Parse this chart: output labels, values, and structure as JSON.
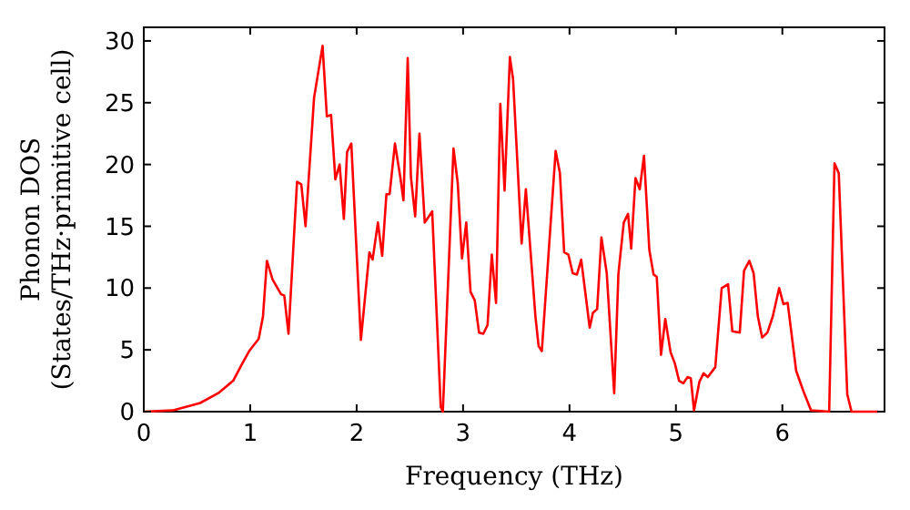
{
  "chart_data": {
    "type": "line",
    "xlabel": "Frequency (THz)",
    "ylabel": "Phonon DOS\n(States/THz·primitive cell)",
    "xlim": [
      0,
      6.96
    ],
    "ylim": [
      0,
      31.1
    ],
    "xticks": [
      0,
      1,
      2,
      3,
      4,
      5,
      6
    ],
    "yticks": [
      0,
      5,
      10,
      15,
      20,
      25,
      30
    ],
    "marker": "none",
    "line_style": "solid",
    "x": [
      0,
      0.27,
      0.53,
      0.7,
      0.84,
      0.92,
      0.99,
      1.08,
      1.12,
      1.157,
      1.21,
      1.29,
      1.32,
      1.36,
      1.44,
      1.48,
      1.52,
      1.6,
      1.68,
      1.72,
      1.76,
      1.8,
      1.84,
      1.88,
      1.91,
      1.95,
      2.04,
      2.12,
      2.15,
      2.2,
      2.24,
      2.28,
      2.31,
      2.36,
      2.41,
      2.44,
      2.48,
      2.51,
      2.55,
      2.59,
      2.64,
      2.71,
      2.79,
      2.81,
      2.91,
      2.95,
      2.99,
      3.03,
      3.07,
      3.11,
      3.15,
      3.19,
      3.23,
      3.27,
      3.31,
      3.35,
      3.39,
      3.44,
      3.47,
      3.55,
      3.59,
      3.68,
      3.71,
      3.74,
      3.87,
      3.91,
      3.95,
      3.99,
      4.03,
      4.07,
      4.11,
      4.19,
      4.22,
      4.26,
      4.3,
      4.35,
      4.42,
      4.46,
      4.51,
      4.55,
      4.58,
      4.62,
      4.66,
      4.7,
      4.75,
      4.79,
      4.82,
      4.86,
      4.9,
      4.95,
      4.99,
      5.03,
      5.07,
      5.11,
      5.14,
      5.17,
      5.22,
      5.26,
      5.3,
      5.37,
      5.43,
      5.49,
      5.53,
      5.6,
      5.64,
      5.69,
      5.73,
      5.77,
      5.81,
      5.86,
      5.91,
      5.97,
      6.01,
      6.05,
      6.13,
      6.2,
      6.27,
      6.44,
      6.49,
      6.53,
      6.61,
      6.65,
      6.9
    ],
    "series": [
      {
        "color": "#ff0000",
        "values": [
          0,
          0.1,
          0.7,
          1.5,
          2.5,
          3.8,
          4.9,
          5.9,
          7.7,
          12.2,
          10.7,
          9.5,
          9.4,
          6.3,
          18.6,
          18.4,
          15,
          25.4,
          29.6,
          23.9,
          24,
          18.8,
          20,
          15.6,
          21,
          21.7,
          5.8,
          12.9,
          12.3,
          15.3,
          12.6,
          17.6,
          17.6,
          21.7,
          19,
          17.1,
          28.6,
          19,
          15.8,
          22.5,
          15.3,
          16.2,
          0.4,
          0,
          21.3,
          18.5,
          12.4,
          15.3,
          9.7,
          9,
          6.4,
          6.3,
          7,
          12.7,
          8.8,
          24.9,
          17.9,
          28.7,
          26.9,
          13.6,
          18,
          7.7,
          5.3,
          4.9,
          21.1,
          19.3,
          12.9,
          12.7,
          11.2,
          11.1,
          12.3,
          6.8,
          8,
          8.3,
          14.1,
          11.2,
          1.5,
          11.2,
          15.3,
          16,
          13.2,
          18.9,
          18,
          20.7,
          13.1,
          11.1,
          10.9,
          4.6,
          7.5,
          4.8,
          3.9,
          2.5,
          2.3,
          2.8,
          2.7,
          0.1,
          2.4,
          3.1,
          2.8,
          3.6,
          10,
          10.3,
          6.5,
          6.4,
          11.4,
          12.2,
          11.2,
          7.7,
          6,
          6.4,
          7.7,
          10,
          8.7,
          8.8,
          3.3,
          1.6,
          0.1,
          0,
          20.1,
          19.3,
          1.4,
          0,
          0
        ]
      }
    ]
  }
}
